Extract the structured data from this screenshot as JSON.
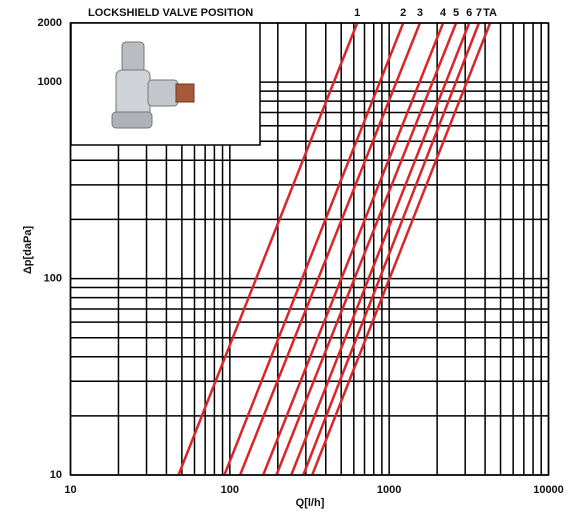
{
  "chart_data": {
    "type": "line",
    "title": "LOCKSHIELD VALVE POSITION",
    "x_label": "Q[l/h]",
    "y_label": "Δp[daPa]",
    "xscale": "log",
    "yscale": "log",
    "grid": true,
    "xlim": [
      10,
      10000
    ],
    "ylim": [
      10,
      2000
    ],
    "xticks": [
      10,
      100,
      1000,
      10000
    ],
    "yticks": [
      10,
      100,
      1000,
      2000
    ],
    "xminorticks": [
      20,
      30,
      40,
      50,
      60,
      70,
      80,
      90,
      200,
      300,
      400,
      500,
      600,
      700,
      800,
      900,
      2000,
      3000,
      4000,
      5000,
      6000,
      7000,
      8000,
      9000
    ],
    "yminorticks": [
      20,
      30,
      40,
      50,
      60,
      70,
      80,
      90,
      200,
      300,
      400,
      500,
      600,
      700,
      800,
      900
    ],
    "series": [
      {
        "name": "1",
        "color": "#d8262b",
        "x": [
          47.6,
          630
        ],
        "values": [
          10,
          2000
        ]
      },
      {
        "name": "2",
        "color": "#d8262b",
        "x": [
          92.5,
          1225
        ],
        "values": [
          10,
          2000
        ]
      },
      {
        "name": "3",
        "color": "#d8262b",
        "x": [
          116,
          1560
        ],
        "values": [
          10,
          2000
        ]
      },
      {
        "name": "4",
        "color": "#d8262b",
        "x": [
          162,
          2180
        ],
        "values": [
          10,
          2000
        ]
      },
      {
        "name": "5",
        "color": "#d8262b",
        "x": [
          196,
          2630
        ],
        "values": [
          10,
          2000
        ]
      },
      {
        "name": "6",
        "color": "#d8262b",
        "x": [
          243,
          3180
        ],
        "values": [
          10,
          2000
        ]
      },
      {
        "name": "7",
        "color": "#d8262b",
        "x": [
          289,
          3660
        ],
        "values": [
          10,
          2000
        ]
      },
      {
        "name": "TA",
        "color": "#d8262b",
        "x": [
          329,
          4300
        ],
        "values": [
          10,
          2000
        ]
      }
    ]
  }
}
